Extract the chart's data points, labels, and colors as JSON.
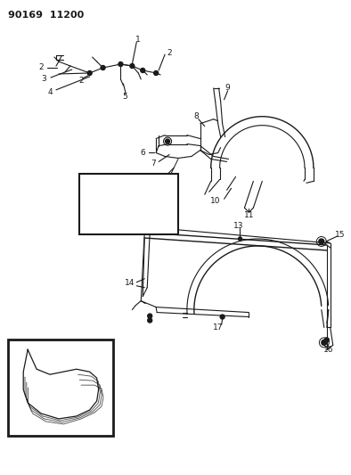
{
  "title": "90169 11200",
  "bg_color": "#ffffff",
  "line_color": "#1a1a1a",
  "fig_width": 3.94,
  "fig_height": 5.33,
  "dpi": 100
}
